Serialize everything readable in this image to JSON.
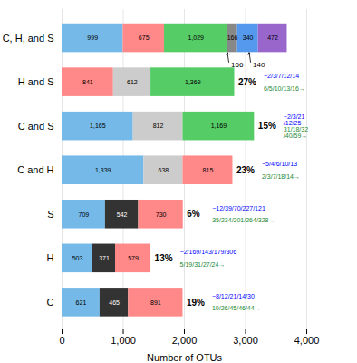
{
  "chart_data": {
    "type": "bar",
    "orientation": "horizontal",
    "stacked": true,
    "data_labels": true,
    "xlabel": "Number of OTUs",
    "categories": [
      "C, H, and S",
      "H and S",
      "C and S",
      "C and H",
      "S",
      "H",
      "C"
    ],
    "values": [
      [
        999,
        675,
        1029,
        166,
        340,
        472
      ],
      [
        841,
        612,
        1369
      ],
      [
        1165,
        812,
        1169
      ],
      [
        1339,
        638,
        815
      ],
      [
        709,
        542,
        730
      ],
      [
        503,
        371,
        579
      ],
      [
        621,
        465,
        891
      ]
    ],
    "value_labels": [
      [
        "999",
        "675",
        "1,029",
        "166",
        "340",
        "472"
      ],
      [
        "841",
        "612",
        "1,369"
      ],
      [
        "1,165",
        "812",
        "1,169"
      ],
      [
        "1,339",
        "638",
        "815"
      ],
      [
        "709",
        "542",
        "730"
      ],
      [
        "503",
        "371",
        "579"
      ],
      [
        "621",
        "465",
        "891"
      ]
    ],
    "colors": [
      [
        "#74b9e8",
        "#ff8888",
        "#55cc66",
        "#888888",
        "#5599ee",
        "#9966cc"
      ],
      [
        "#ff8888",
        "#cccccc",
        "#55cc66"
      ],
      [
        "#74b9e8",
        "#cccccc",
        "#55cc66"
      ],
      [
        "#74b9e8",
        "#cccccc",
        "#ff8888"
      ],
      [
        "#74b9e8",
        "#333333",
        "#ff8888"
      ],
      [
        "#74b9e8",
        "#333333",
        "#ff8888"
      ],
      [
        "#74b9e8",
        "#333333",
        "#ff8888"
      ]
    ],
    "row_annotations": [
      {
        "category": "H and S",
        "percent": "27%",
        "upper": "−2/3/7/12/14",
        "lower": "6/5/10/13/16→"
      },
      {
        "category": "C and S",
        "percent": "15%",
        "upper": "−2/3/21\n/12/25",
        "lower": "31/18/32\n/40/59→"
      },
      {
        "category": "C and H",
        "percent": "23%",
        "upper": "−5/4/6/10/13",
        "lower": "2/3/7/18/14→"
      },
      {
        "category": "S",
        "percent": "6%",
        "upper": "−12/39/70/227/121",
        "lower": "35/234/201/264/328→"
      },
      {
        "category": "H",
        "percent": "13%",
        "upper": "−2/169/143/179/306",
        "lower": "5/19/31/27/24→"
      },
      {
        "category": "C",
        "percent": "19%",
        "upper": "−8/12/21/14/30",
        "lower": "10/26/45/46/44→"
      }
    ],
    "upper_color": "blue",
    "lower_color": "#228833",
    "pointers": [
      {
        "category": "C, H, and S",
        "x": 2703,
        "text": "166"
      },
      {
        "category": "C, H, and S",
        "x": 3059,
        "text": "140"
      }
    ],
    "xlim": [
      0,
      4000
    ],
    "xticks": [
      0,
      {
        "value": 1000,
        "label": "1,000"
      },
      {
        "value": 2000,
        "label": "2,000"
      },
      {
        "value": 3000,
        "label": "3,000"
      },
      {
        "value": 4000,
        "label": "4,000"
      }
    ],
    "grid": true
  }
}
